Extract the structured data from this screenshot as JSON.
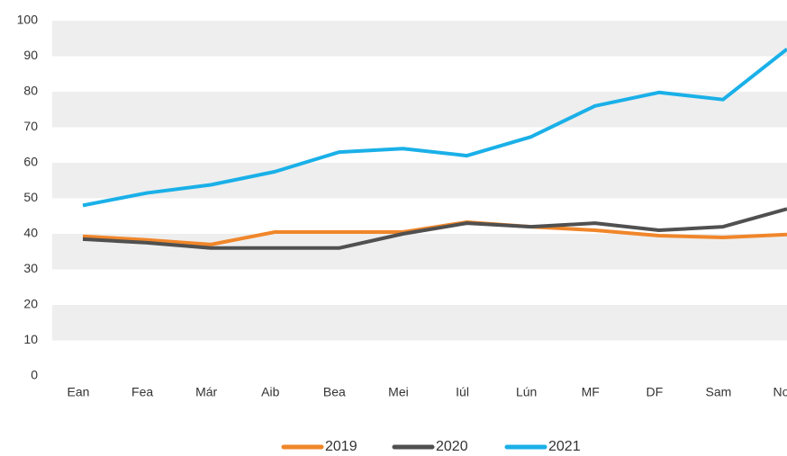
{
  "chart_data": {
    "type": "line",
    "categories": [
      "Ean",
      "Fea",
      "Már",
      "Aib",
      "Bea",
      "Mei",
      "Iúl",
      "Lún",
      "MF",
      "DF",
      "Sam",
      "Nol"
    ],
    "series": [
      {
        "name": "2019",
        "color": "#f0862a",
        "values": [
          39.3,
          38.3,
          37,
          40.5,
          40.5,
          40.5,
          43.3,
          42,
          41,
          39.5,
          39,
          39.8
        ]
      },
      {
        "name": "2020",
        "color": "#505050",
        "values": [
          38.5,
          37.5,
          36,
          36,
          36,
          40,
          43,
          42,
          43,
          41,
          42,
          47
        ]
      },
      {
        "name": "2021",
        "color": "#1ab0e8",
        "values": [
          48,
          51.5,
          53.8,
          57.5,
          63,
          64,
          62,
          67.3,
          76,
          79.8,
          77.8,
          92
        ]
      }
    ],
    "ylim": [
      0,
      100
    ],
    "yticks": [
      0,
      10,
      20,
      30,
      40,
      50,
      60,
      70,
      80,
      90,
      100
    ],
    "grid": "bands",
    "legend": "bottom"
  }
}
